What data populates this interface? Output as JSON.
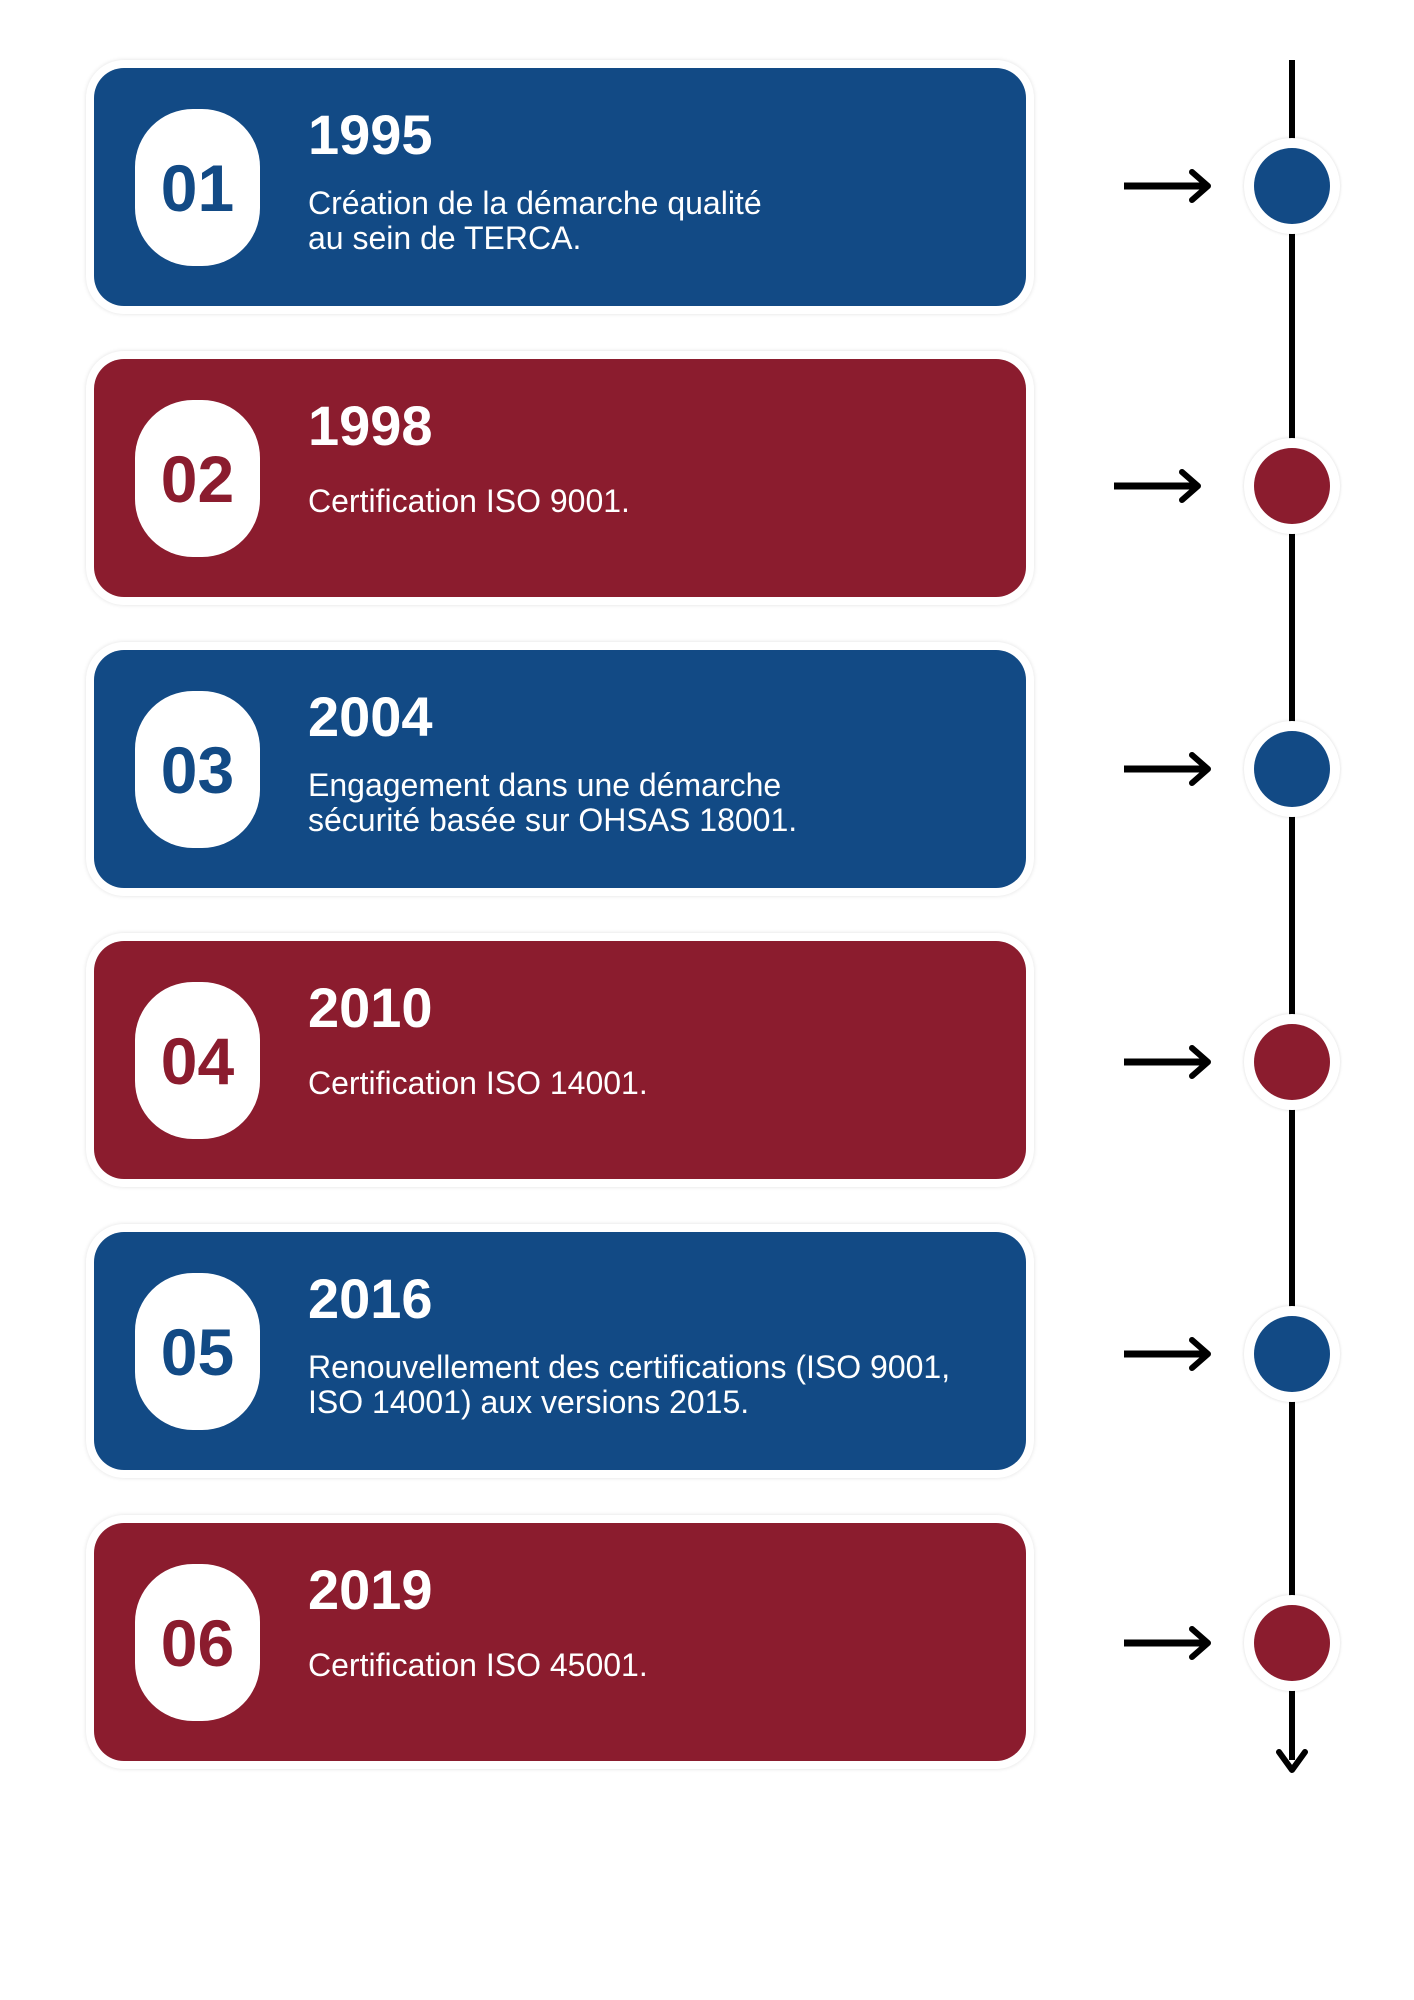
{
  "colors": {
    "blue": "#124a85",
    "red": "#8b1c2e",
    "timeline": "#000000"
  },
  "items": [
    {
      "number": "01",
      "year": "1995",
      "description": "Création de la démarche qualité\nau sein de TERCA.",
      "color": "blue"
    },
    {
      "number": "02",
      "year": "1998",
      "description": "Certification ISO 9001.",
      "color": "red"
    },
    {
      "number": "03",
      "year": "2004",
      "description": "Engagement dans une démarche\nsécurité basée sur OHSAS 18001.",
      "color": "blue"
    },
    {
      "number": "04",
      "year": "2010",
      "description": "Certification ISO 14001.",
      "color": "red"
    },
    {
      "number": "05",
      "year": "2016",
      "description": "Renouvellement des certifications (ISO 9001,\nISO 14001) aux versions 2015.",
      "color": "blue"
    },
    {
      "number": "06",
      "year": "2019",
      "description": "Certification ISO 45001.",
      "color": "red"
    }
  ],
  "icons": {
    "arrow": "arrow-right-icon",
    "timeline_end": "arrow-down-icon"
  }
}
